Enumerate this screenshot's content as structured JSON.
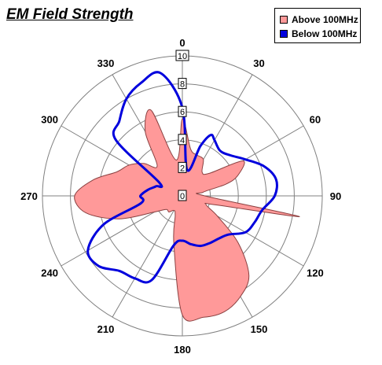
{
  "chart_data": {
    "type": "polar",
    "title": "EM Field Strength",
    "radial_range": [
      0,
      10
    ],
    "radial_ticks": [
      "0",
      "2",
      "4",
      "6",
      "8",
      "10"
    ],
    "angle_ticks": [
      "0",
      "30",
      "60",
      "90",
      "120",
      "150",
      "180",
      "210",
      "240",
      "270",
      "300",
      "330"
    ],
    "grid": true,
    "legend_position": "top-right",
    "series": [
      {
        "name": "Above 100MHz",
        "style": "filled-area",
        "color": "#ff9999",
        "angles": [
          0,
          10,
          20,
          30,
          40,
          50,
          60,
          70,
          75,
          80,
          90,
          100,
          105,
          110,
          120,
          130,
          140,
          150,
          160,
          170,
          180,
          190,
          200,
          210,
          220,
          230,
          240,
          250,
          260,
          270,
          280,
          290,
          300,
          310,
          320,
          330,
          340,
          350
        ],
        "values": [
          5.5,
          3.4,
          3.1,
          3.0,
          2.2,
          2.5,
          5.0,
          4.2,
          3.2,
          1.5,
          1.6,
          8.5,
          2.5,
          1.8,
          2.9,
          5.2,
          7.4,
          8.3,
          8.8,
          8.8,
          8.5,
          3.5,
          1.5,
          1.2,
          1.5,
          1.5,
          2.3,
          4.8,
          7.0,
          7.7,
          6.5,
          5.0,
          4.4,
          3.6,
          2.8,
          5.3,
          6.5,
          2.6
        ]
      },
      {
        "name": "Below 100MHz",
        "style": "line",
        "color": "#0000dd",
        "angles": [
          0,
          10,
          20,
          25,
          30,
          40,
          50,
          60,
          70,
          80,
          90,
          100,
          110,
          120,
          130,
          140,
          150,
          160,
          170,
          180,
          190,
          200,
          210,
          220,
          230,
          240,
          250,
          260,
          270,
          280,
          290,
          300,
          310,
          320,
          330,
          340,
          350
        ],
        "values": [
          6.3,
          1.9,
          3.8,
          4.8,
          4.6,
          4.2,
          4.5,
          5.2,
          6.2,
          6.8,
          6.6,
          5.8,
          5.5,
          5.2,
          4.3,
          4.0,
          3.9,
          3.8,
          3.5,
          3.2,
          3.6,
          6.4,
          6.8,
          7.0,
          7.8,
          7.8,
          6.0,
          3.0,
          3.0,
          2.5,
          2.0,
          1.9,
          6.2,
          7.0,
          8.0,
          8.6,
          8.9
        ]
      }
    ]
  }
}
